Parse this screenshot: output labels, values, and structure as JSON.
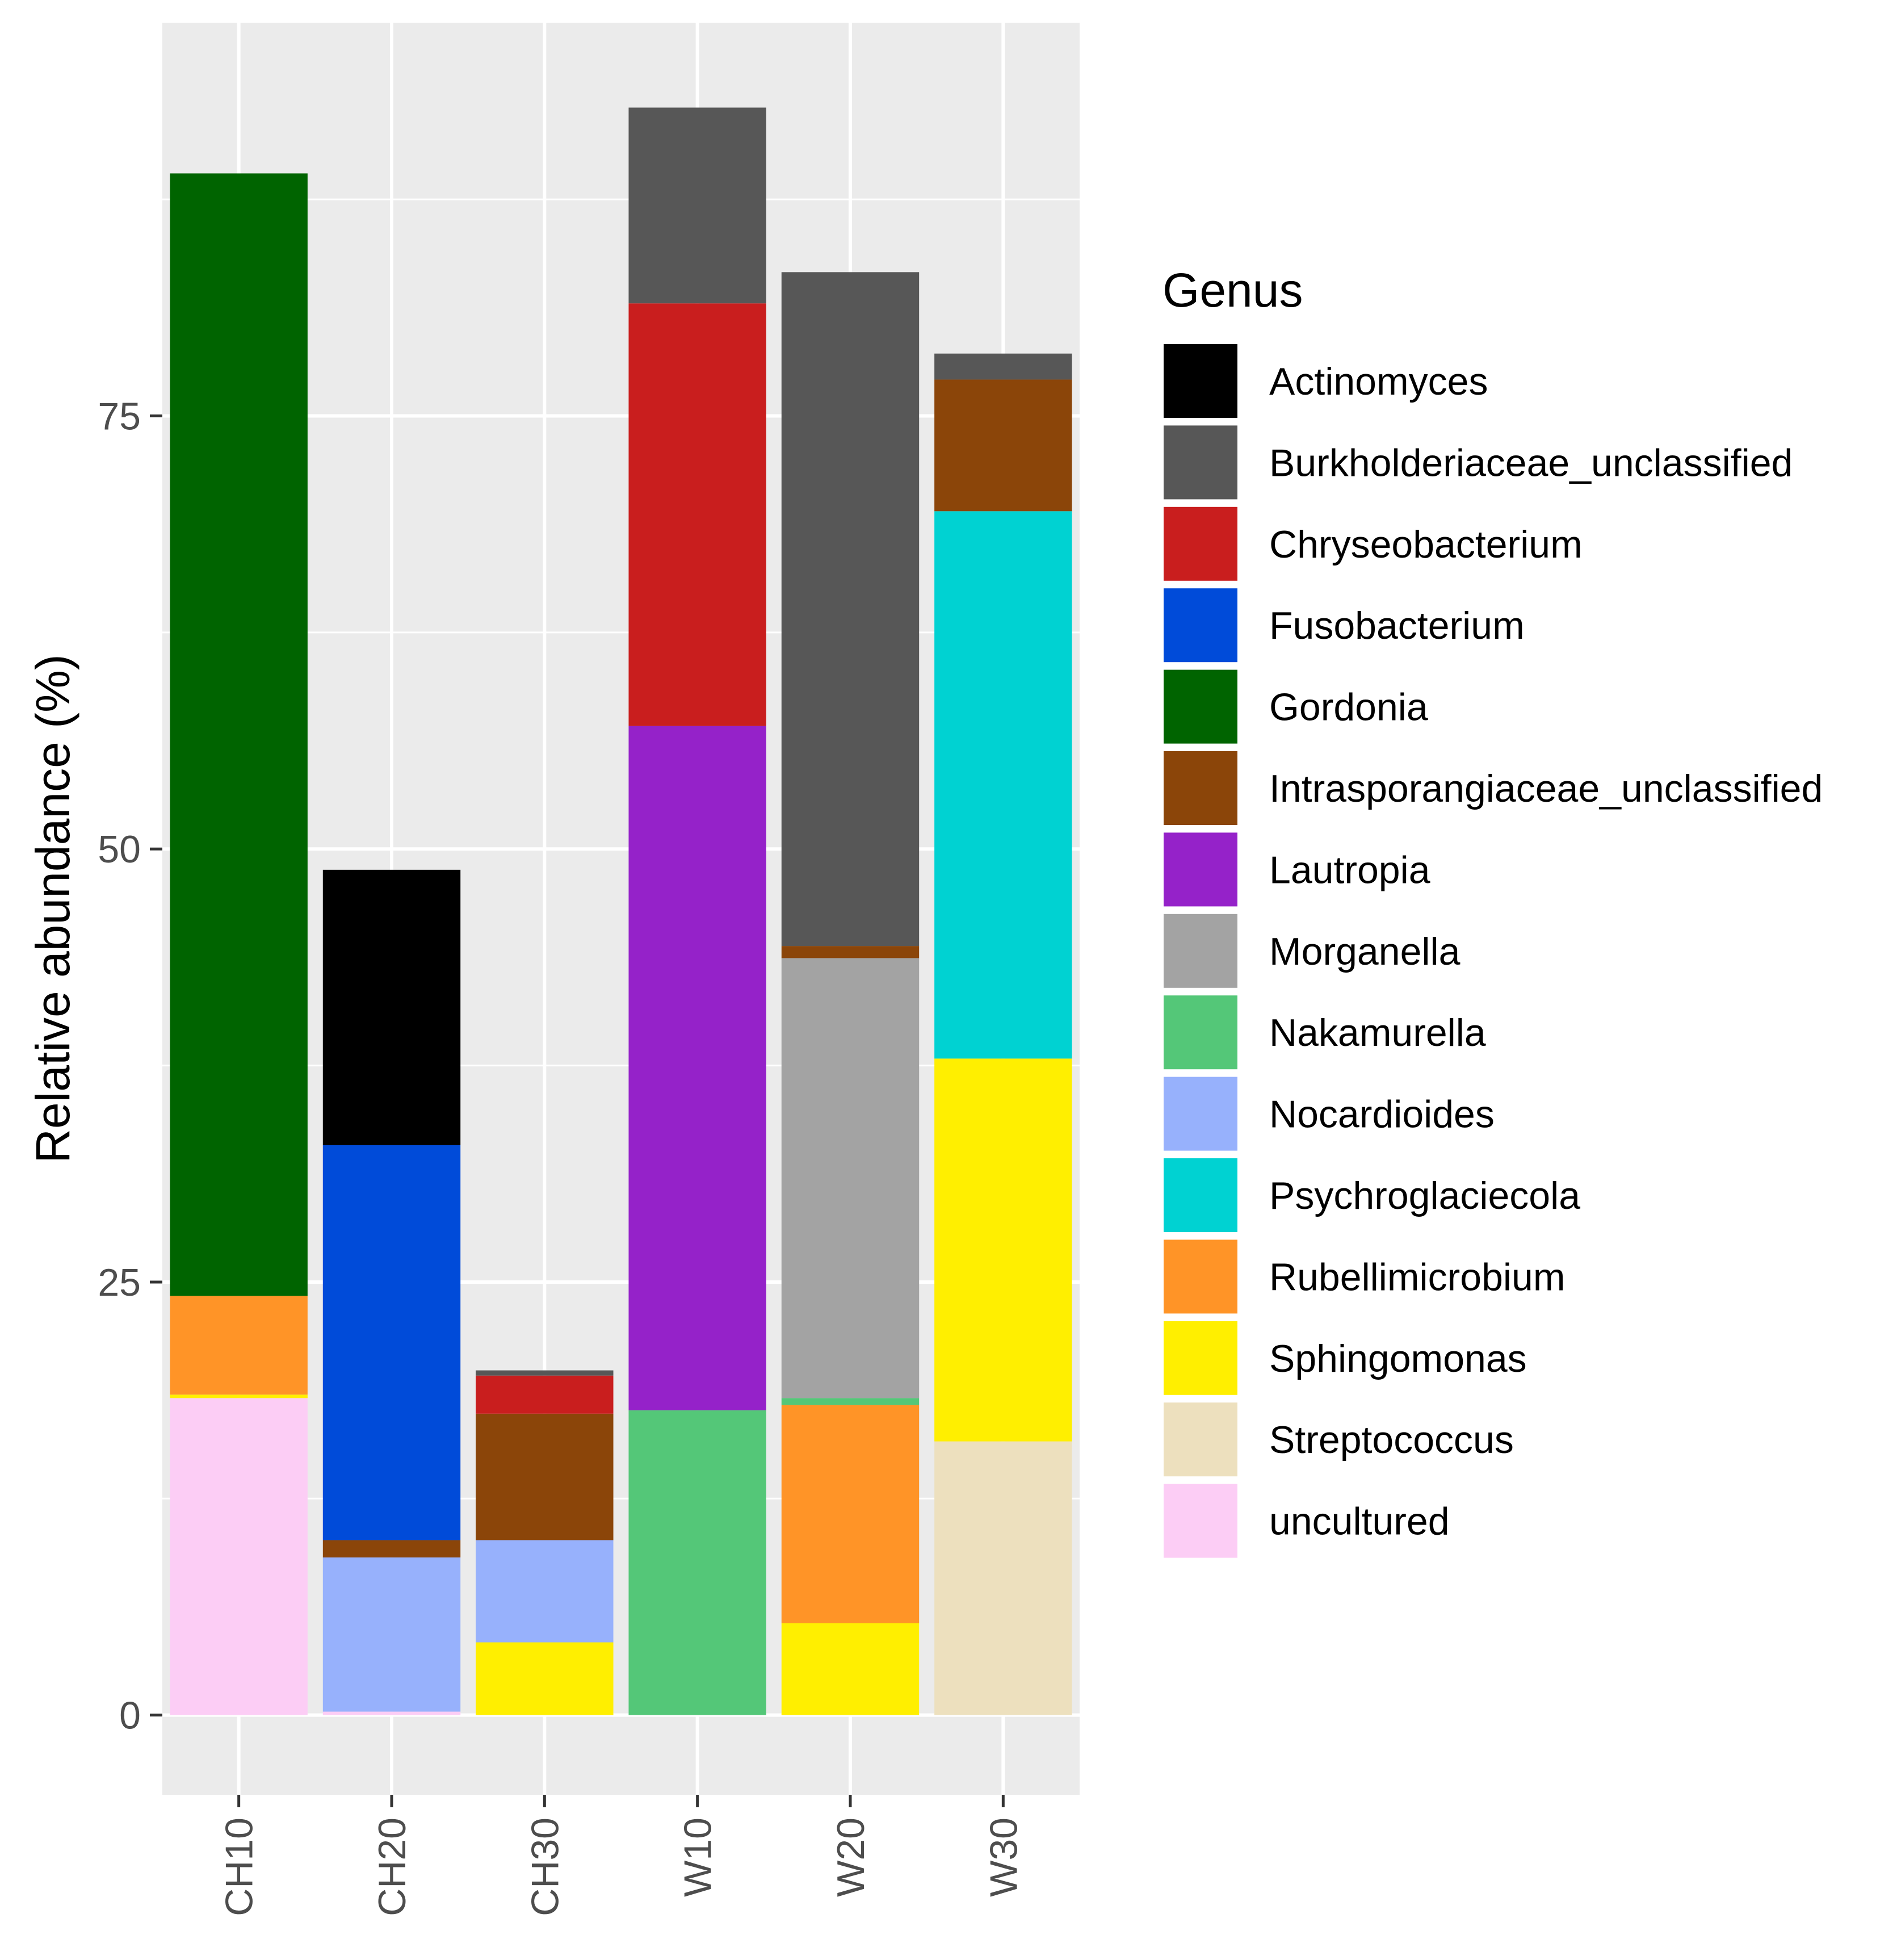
{
  "chart_data": {
    "type": "bar",
    "stacked": true,
    "title": "",
    "xlabel": "",
    "ylabel": "Relative abundance (%)",
    "ylim": [
      -4.6,
      97.7
    ],
    "yticks": [
      0,
      25,
      50,
      75
    ],
    "grid": true,
    "legend": {
      "title": "Genus",
      "position": "right"
    },
    "categories": [
      "CH10",
      "CH20",
      "CH30",
      "W10",
      "W20",
      "W30"
    ],
    "series": [
      {
        "name": "Actinomyces",
        "color": "#000000",
        "values": [
          0,
          15.9,
          0,
          0,
          0,
          0
        ]
      },
      {
        "name": "Burkholderiaceae_unclassified",
        "color": "#575757",
        "values": [
          0,
          0,
          0.3,
          11.3,
          38.9,
          1.5
        ]
      },
      {
        "name": "Chryseobacterium",
        "color": "#C91E1E",
        "values": [
          0,
          0,
          2.2,
          24.4,
          0,
          0
        ]
      },
      {
        "name": "Fusobacterium",
        "color": "#004BD9",
        "values": [
          0,
          22.8,
          0,
          0,
          0,
          0
        ]
      },
      {
        "name": "Gordonia",
        "color": "#006400",
        "values": [
          64.8,
          0,
          0,
          0,
          0,
          0
        ]
      },
      {
        "name": "Intrasporangiaceae_unclassified",
        "color": "#8B4509",
        "values": [
          0,
          1.0,
          7.3,
          0,
          0.7,
          7.6
        ]
      },
      {
        "name": "Lautropia",
        "color": "#9522C9",
        "values": [
          0,
          0,
          0,
          39.5,
          0,
          0
        ]
      },
      {
        "name": "Morganella",
        "color": "#A3A3A3",
        "values": [
          0,
          0,
          0,
          0,
          25.4,
          0
        ]
      },
      {
        "name": "Nakamurella",
        "color": "#54C778",
        "values": [
          0,
          0,
          0,
          17.6,
          0.4,
          0
        ]
      },
      {
        "name": "Nocardioides",
        "color": "#97B1FC",
        "values": [
          0,
          8.9,
          5.9,
          0,
          0,
          0
        ]
      },
      {
        "name": "Psychroglaciecola",
        "color": "#00D2D2",
        "values": [
          0,
          0,
          0,
          0,
          0,
          31.6
        ]
      },
      {
        "name": "Rubellimicrobium",
        "color": "#FF9427",
        "values": [
          5.7,
          0,
          0,
          0,
          12.6,
          0
        ]
      },
      {
        "name": "Sphingomonas",
        "color": "#FFEF00",
        "values": [
          0.2,
          0,
          4.2,
          0,
          5.3,
          22.1
        ]
      },
      {
        "name": "Streptococcus",
        "color": "#EDE0BE",
        "values": [
          0,
          0,
          0,
          0,
          0,
          15.8
        ]
      },
      {
        "name": "uncultured",
        "color": "#FCCDF5",
        "values": [
          18.3,
          0.2,
          0,
          0,
          0,
          0
        ]
      }
    ]
  },
  "style": {
    "panel_background": "#EBEBEB",
    "grid_color": "#FFFFFF",
    "axis_text_color": "#4D4D4D",
    "axis_title_color": "#000000"
  }
}
